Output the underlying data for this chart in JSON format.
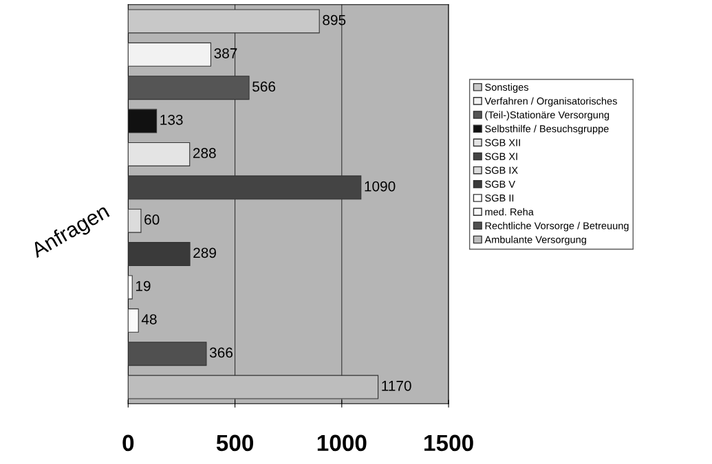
{
  "chart_data": {
    "type": "bar",
    "orientation": "horizontal",
    "ylabel": "Anfragen",
    "categories": [
      null,
      null,
      null,
      null,
      null,
      null,
      null,
      null,
      null,
      null,
      null,
      null
    ],
    "series": [
      {
        "name": "Sonstiges",
        "color": "#c8c8c8",
        "values": [
          895,
          null,
          null,
          null,
          null,
          null,
          null,
          null,
          null,
          null,
          null,
          null
        ]
      },
      {
        "name": "Verfahren / Organisatorisches",
        "color": "#f2f2f2",
        "values": [
          null,
          387,
          null,
          null,
          null,
          null,
          null,
          null,
          null,
          null,
          null,
          null
        ]
      },
      {
        "name": "(Teil-)Stationäre Versorgung",
        "color": "#555555",
        "values": [
          null,
          null,
          566,
          null,
          null,
          null,
          null,
          null,
          null,
          null,
          null,
          null
        ]
      },
      {
        "name": "Selbsthilfe / Besuchsgruppe",
        "color": "#111111",
        "values": [
          null,
          null,
          null,
          133,
          null,
          null,
          null,
          null,
          null,
          null,
          null,
          null
        ]
      },
      {
        "name": "SGB XII",
        "color": "#e4e4e4",
        "values": [
          null,
          null,
          null,
          null,
          288,
          null,
          null,
          null,
          null,
          null,
          null,
          null
        ]
      },
      {
        "name": "SGB XI",
        "color": "#444444",
        "values": [
          null,
          null,
          null,
          null,
          null,
          1090,
          null,
          null,
          null,
          null,
          null,
          null
        ]
      },
      {
        "name": "SGB IX",
        "color": "#dcdcdc",
        "values": [
          null,
          null,
          null,
          null,
          null,
          null,
          60,
          null,
          null,
          null,
          null,
          null
        ]
      },
      {
        "name": "SGB V",
        "color": "#3a3a3a",
        "values": [
          null,
          null,
          null,
          null,
          null,
          null,
          null,
          289,
          null,
          null,
          null,
          null
        ]
      },
      {
        "name": "SGB II",
        "color": "#ffffff",
        "values": [
          null,
          null,
          null,
          null,
          null,
          null,
          null,
          null,
          19,
          null,
          null,
          null
        ]
      },
      {
        "name": "med. Reha",
        "color": "#fafafa",
        "values": [
          null,
          null,
          null,
          null,
          null,
          null,
          null,
          null,
          null,
          48,
          null,
          null
        ]
      },
      {
        "name": "Rechtliche Vorsorge / Betreuung",
        "color": "#505050",
        "values": [
          null,
          null,
          null,
          null,
          null,
          null,
          null,
          null,
          null,
          null,
          366,
          null
        ]
      },
      {
        "name": "Ambulante Versorgung",
        "color": "#bdbdbd",
        "values": [
          null,
          null,
          null,
          null,
          null,
          null,
          null,
          null,
          null,
          null,
          null,
          1170
        ]
      }
    ],
    "xlim": [
      0,
      1500
    ],
    "xticks": [
      0,
      500,
      1000,
      1500
    ],
    "grid": "x",
    "legend": "right",
    "data_labels": true
  }
}
